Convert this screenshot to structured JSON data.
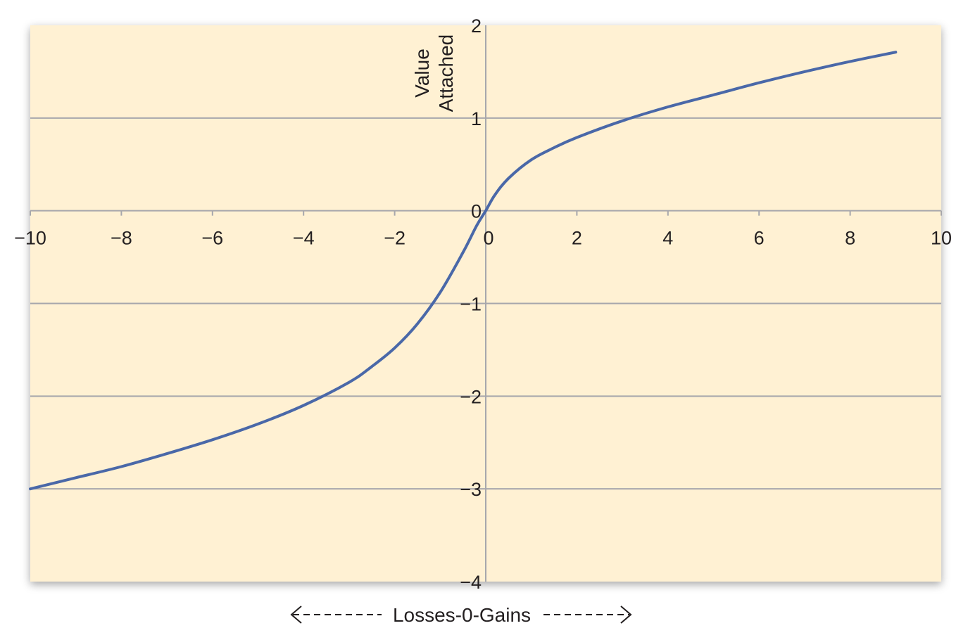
{
  "chart_data": {
    "type": "line",
    "title": "",
    "xlabel": "",
    "ylabel": "Value Attached",
    "ylabel_lines": [
      "Value",
      "Attached"
    ],
    "footer_label": "Losses-0-Gains",
    "xlim": [
      -10,
      10
    ],
    "ylim": [
      -4,
      2
    ],
    "x_ticks": [
      -10,
      -8,
      -6,
      -4,
      -2,
      0,
      2,
      4,
      6,
      8,
      10
    ],
    "x_tick_labels": [
      "−10",
      "−8",
      "−6",
      "−4",
      "−2",
      "0",
      "2",
      "4",
      "6",
      "8",
      "10"
    ],
    "y_ticks": [
      2,
      1,
      0,
      -1,
      -2,
      -3,
      -4
    ],
    "y_tick_labels": [
      "2",
      "1",
      "0",
      "−1",
      "−2",
      "−3",
      "−4"
    ],
    "grid": "horizontal",
    "legend": "none",
    "colors": {
      "plot_background": "#fff1d3",
      "line": "#4a68a8",
      "grid": "#a7a7ac",
      "text": "#231f20"
    },
    "series": [
      {
        "values_x": [
          -10,
          -9,
          -8,
          -7,
          -6,
          -5,
          -4,
          -3,
          -2.5,
          -2,
          -1.5,
          -1,
          -0.5,
          -0.2,
          0,
          0.2,
          0.5,
          1,
          1.5,
          2,
          3,
          4,
          5,
          6,
          7,
          8,
          9
        ],
        "values_y": [
          -3.0,
          -2.88,
          -2.76,
          -2.62,
          -2.47,
          -2.3,
          -2.1,
          -1.85,
          -1.68,
          -1.48,
          -1.22,
          -0.88,
          -0.45,
          -0.16,
          0.0,
          0.17,
          0.35,
          0.55,
          0.68,
          0.79,
          0.97,
          1.12,
          1.25,
          1.38,
          1.5,
          1.61,
          1.71
        ]
      }
    ]
  }
}
